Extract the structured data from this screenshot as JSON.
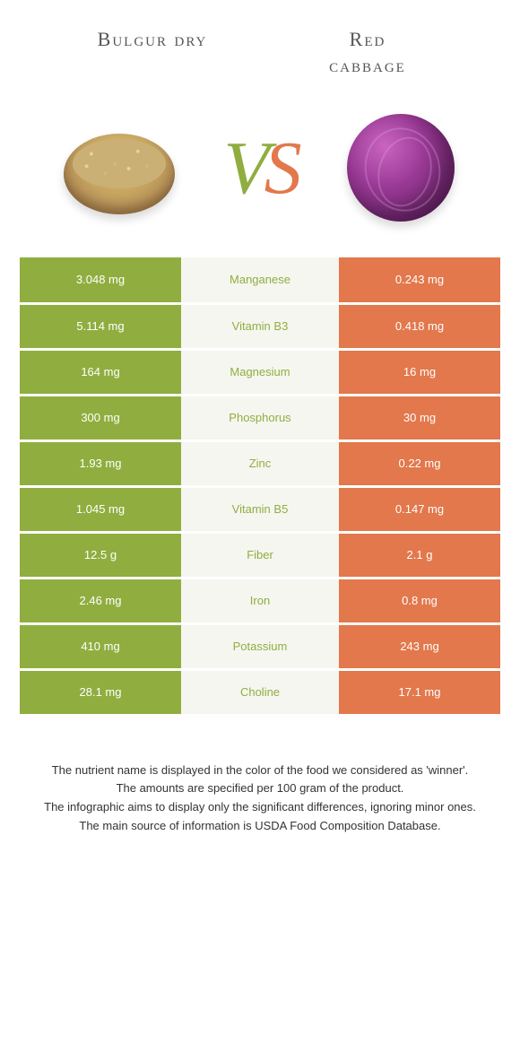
{
  "header": {
    "left_title": "Bulgur dry",
    "right_title_line1": "Red",
    "right_title_line2": "cabbage",
    "vs_v": "V",
    "vs_s": "S"
  },
  "colors": {
    "left": "#8fae3f",
    "right": "#e2784c",
    "mid_bg": "#f6f6f0",
    "page_bg": "#ffffff"
  },
  "rows": [
    {
      "left": "3.048 mg",
      "nutrient": "Manganese",
      "right": "0.243 mg",
      "winner": "left"
    },
    {
      "left": "5.114 mg",
      "nutrient": "Vitamin B3",
      "right": "0.418 mg",
      "winner": "left"
    },
    {
      "left": "164 mg",
      "nutrient": "Magnesium",
      "right": "16 mg",
      "winner": "left"
    },
    {
      "left": "300 mg",
      "nutrient": "Phosphorus",
      "right": "30 mg",
      "winner": "left"
    },
    {
      "left": "1.93 mg",
      "nutrient": "Zinc",
      "right": "0.22 mg",
      "winner": "left"
    },
    {
      "left": "1.045 mg",
      "nutrient": "Vitamin B5",
      "right": "0.147 mg",
      "winner": "left"
    },
    {
      "left": "12.5 g",
      "nutrient": "Fiber",
      "right": "2.1 g",
      "winner": "left"
    },
    {
      "left": "2.46 mg",
      "nutrient": "Iron",
      "right": "0.8 mg",
      "winner": "left"
    },
    {
      "left": "410 mg",
      "nutrient": "Potassium",
      "right": "243 mg",
      "winner": "left"
    },
    {
      "left": "28.1 mg",
      "nutrient": "Choline",
      "right": "17.1 mg",
      "winner": "left"
    }
  ],
  "footer": {
    "line1": "The nutrient name is displayed in the color of the food we considered as 'winner'.",
    "line2": "The amounts are specified per 100 gram of the product.",
    "line3": "The infographic aims to display only the significant differences, ignoring minor ones.",
    "line4": "The main source of information is USDA Food Composition Database."
  }
}
